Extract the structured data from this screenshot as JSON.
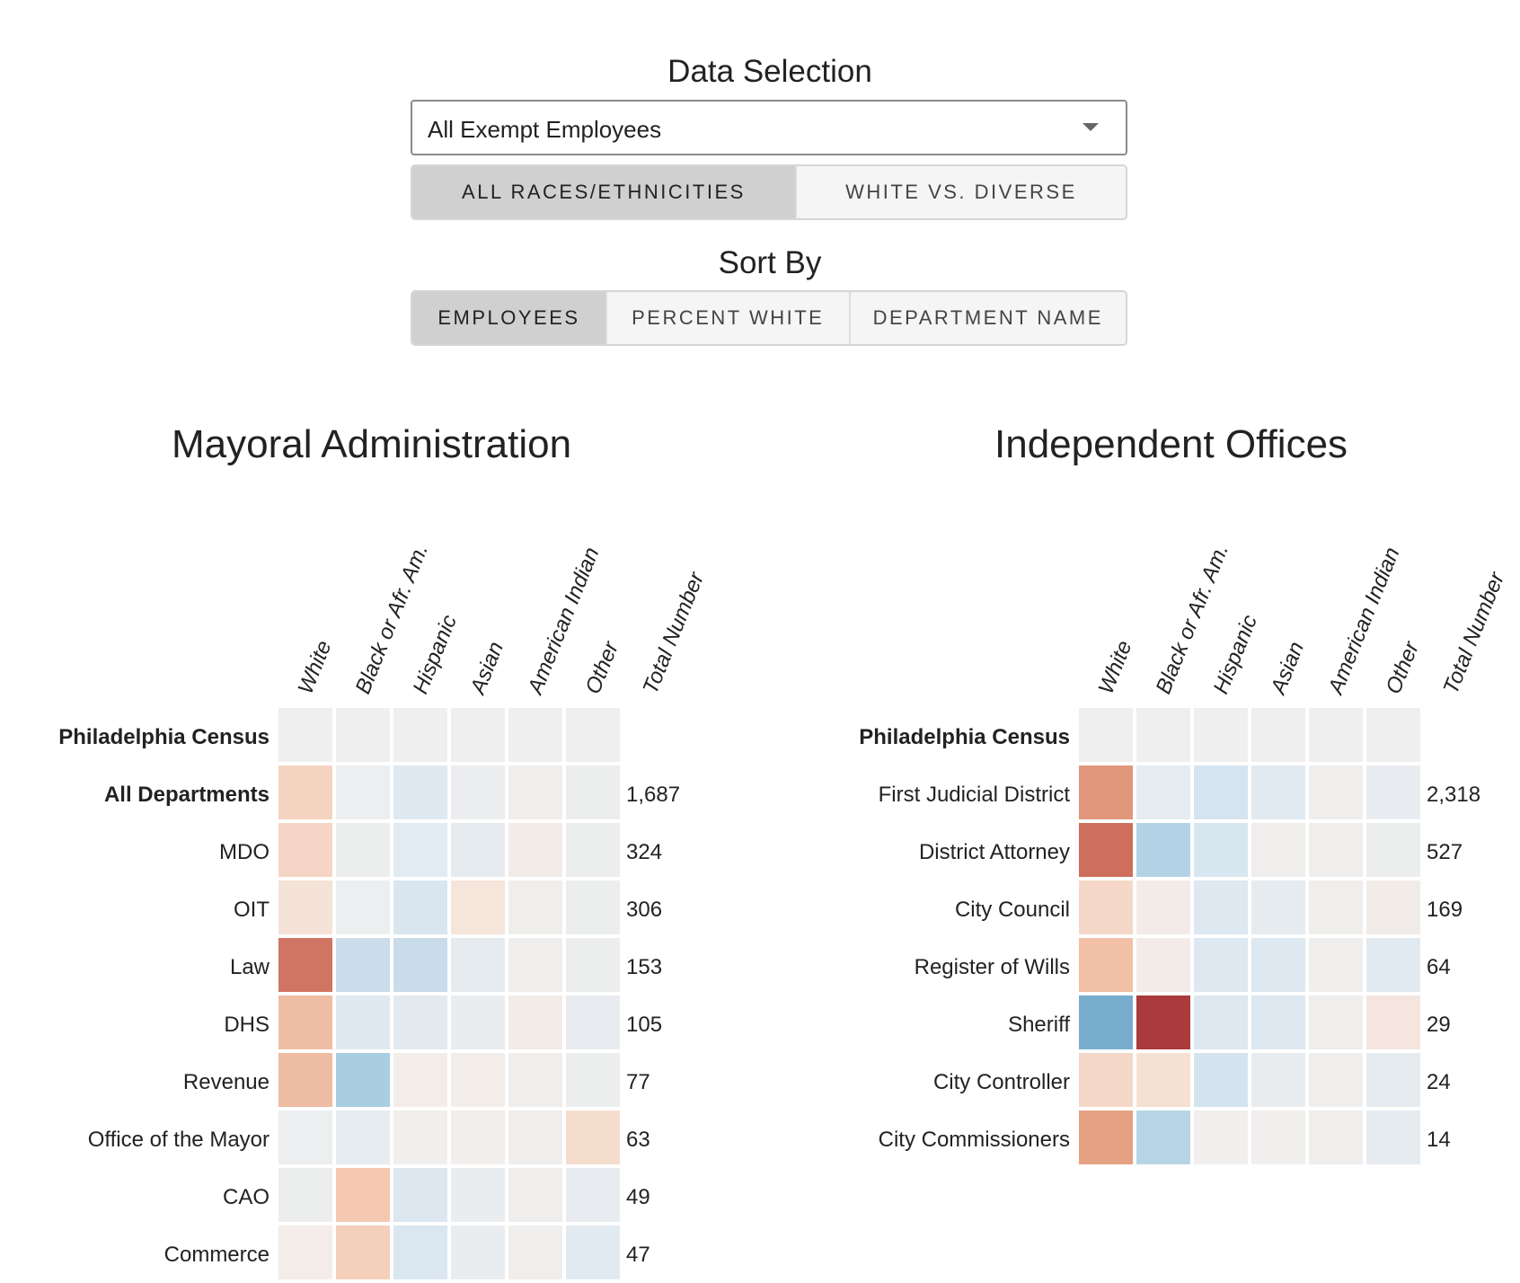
{
  "controls": {
    "data_selection_title": "Data Selection",
    "select_value": "All Exempt Employees",
    "race_buttons": [
      {
        "label": "All Races/Ethnicities",
        "active": true
      },
      {
        "label": "White vs. Diverse",
        "active": false
      }
    ],
    "sort_title": "Sort By",
    "sort_buttons": [
      {
        "label": "Employees",
        "active": true
      },
      {
        "label": "Percent White",
        "active": false
      },
      {
        "label": "Department Name",
        "active": false
      }
    ]
  },
  "chart_data": [
    {
      "type": "heatmap",
      "title": "Mayoral Administration",
      "columns": [
        "White",
        "Black or Afr. Am.",
        "Hispanic",
        "Asian",
        "American Indian",
        "Other",
        "Total Number"
      ],
      "rows": [
        {
          "label": "Philadelphia Census",
          "bold": true,
          "total": "",
          "cells": [
            "#f0efef",
            "#f0efef",
            "#f0efef",
            "#f0efef",
            "#f0efef",
            "#f0efef"
          ]
        },
        {
          "label": "All Departments",
          "bold": true,
          "total": "1,687",
          "cells": [
            "#f5d3c1",
            "#eceeef",
            "#dfe9f1",
            "#ecedee",
            "#f0eeed",
            "#eceeee"
          ]
        },
        {
          "label": "MDO",
          "bold": false,
          "total": "324",
          "cells": [
            "#f5d6c6",
            "#eceeee",
            "#e2eaf2",
            "#e6ebf0",
            "#f3ebe8",
            "#eceeee"
          ]
        },
        {
          "label": "OIT",
          "bold": false,
          "total": "306",
          "cells": [
            "#f5e3d8",
            "#eceeef",
            "#d9e6f0",
            "#f5e5db",
            "#f0eeed",
            "#eceeee"
          ]
        },
        {
          "label": "Law",
          "bold": false,
          "total": "153",
          "cells": [
            "#d07463",
            "#cbdcea",
            "#c9dcea",
            "#e6ebf0",
            "#f0eeed",
            "#eceeee"
          ]
        },
        {
          "label": "DHS",
          "bold": false,
          "total": "105",
          "cells": [
            "#efbda4",
            "#dfe9f0",
            "#e2eaf0",
            "#eaedef",
            "#f3ebe8",
            "#e8ecf0"
          ]
        },
        {
          "label": "Revenue",
          "bold": false,
          "total": "77",
          "cells": [
            "#eebca2",
            "#a9cde1",
            "#f3edea",
            "#f3edea",
            "#f0eeed",
            "#eceeee"
          ]
        },
        {
          "label": "Office of the Mayor",
          "bold": false,
          "total": "63",
          "cells": [
            "#eceeef",
            "#e6ecf0",
            "#f0efee",
            "#f1eeec",
            "#f0eeed",
            "#f5ddcd"
          ]
        },
        {
          "label": "CAO",
          "bold": false,
          "total": "49",
          "cells": [
            "#eceeee",
            "#f4c8b1",
            "#dce7f0",
            "#eaedef",
            "#f0eeed",
            "#e8ecf0"
          ]
        },
        {
          "label": "Commerce",
          "bold": false,
          "total": "47",
          "cells": [
            "#f3ece9",
            "#f4cfbb",
            "#dae6f0",
            "#eaedef",
            "#f0eeed",
            "#e2eaf1"
          ]
        },
        {
          "label": "",
          "bold": false,
          "total": "",
          "cells": [
            "#f3ddd0",
            "#f0efee",
            "#e0e9f0",
            "#f0eeed",
            "#f0eeed",
            "#eceeee"
          ]
        }
      ]
    },
    {
      "type": "heatmap",
      "title": "Independent Offices",
      "columns": [
        "White",
        "Black or Afr. Am.",
        "Hispanic",
        "Asian",
        "American Indian",
        "Other",
        "Total Number"
      ],
      "rows": [
        {
          "label": "Philadelphia Census",
          "bold": true,
          "total": "",
          "cells": [
            "#f0efef",
            "#f0efef",
            "#f0efef",
            "#f0efef",
            "#f0efef",
            "#f0efef"
          ]
        },
        {
          "label": "First Judicial District",
          "bold": false,
          "total": "2,318",
          "cells": [
            "#e0977b",
            "#e6ecf0",
            "#d5e4ef",
            "#e1e9f1",
            "#f0eeed",
            "#e8ecf0"
          ]
        },
        {
          "label": "District Attorney",
          "bold": false,
          "total": "527",
          "cells": [
            "#cd6f5c",
            "#b3d2e5",
            "#d8e6f0",
            "#f0eeed",
            "#f0eeed",
            "#eceeee"
          ]
        },
        {
          "label": "City Council",
          "bold": false,
          "total": "169",
          "cells": [
            "#f5d8c7",
            "#f3ebe8",
            "#dde8f1",
            "#e6ebf0",
            "#f0eeed",
            "#f2ece9"
          ]
        },
        {
          "label": "Register of Wills",
          "bold": false,
          "total": "64",
          "cells": [
            "#f1c0a6",
            "#f3ebe8",
            "#dde8f1",
            "#dde8f1",
            "#f0eeed",
            "#e2eaf1"
          ]
        },
        {
          "label": "Sheriff",
          "bold": false,
          "total": "29",
          "cells": [
            "#79adce",
            "#aa3a3c",
            "#dde8f1",
            "#dde8f1",
            "#f0eeed",
            "#f4e6df"
          ]
        },
        {
          "label": "City Controller",
          "bold": false,
          "total": "24",
          "cells": [
            "#f5d8c7",
            "#f5e1d3",
            "#d4e4ef",
            "#e8ecef",
            "#f0eeed",
            "#e6ebf0"
          ]
        },
        {
          "label": "City Commissioners",
          "bold": false,
          "total": "14",
          "cells": [
            "#e4a283",
            "#b8d5e7",
            "#f0efee",
            "#f0efee",
            "#f0eeed",
            "#e6ebf0"
          ]
        }
      ]
    }
  ]
}
